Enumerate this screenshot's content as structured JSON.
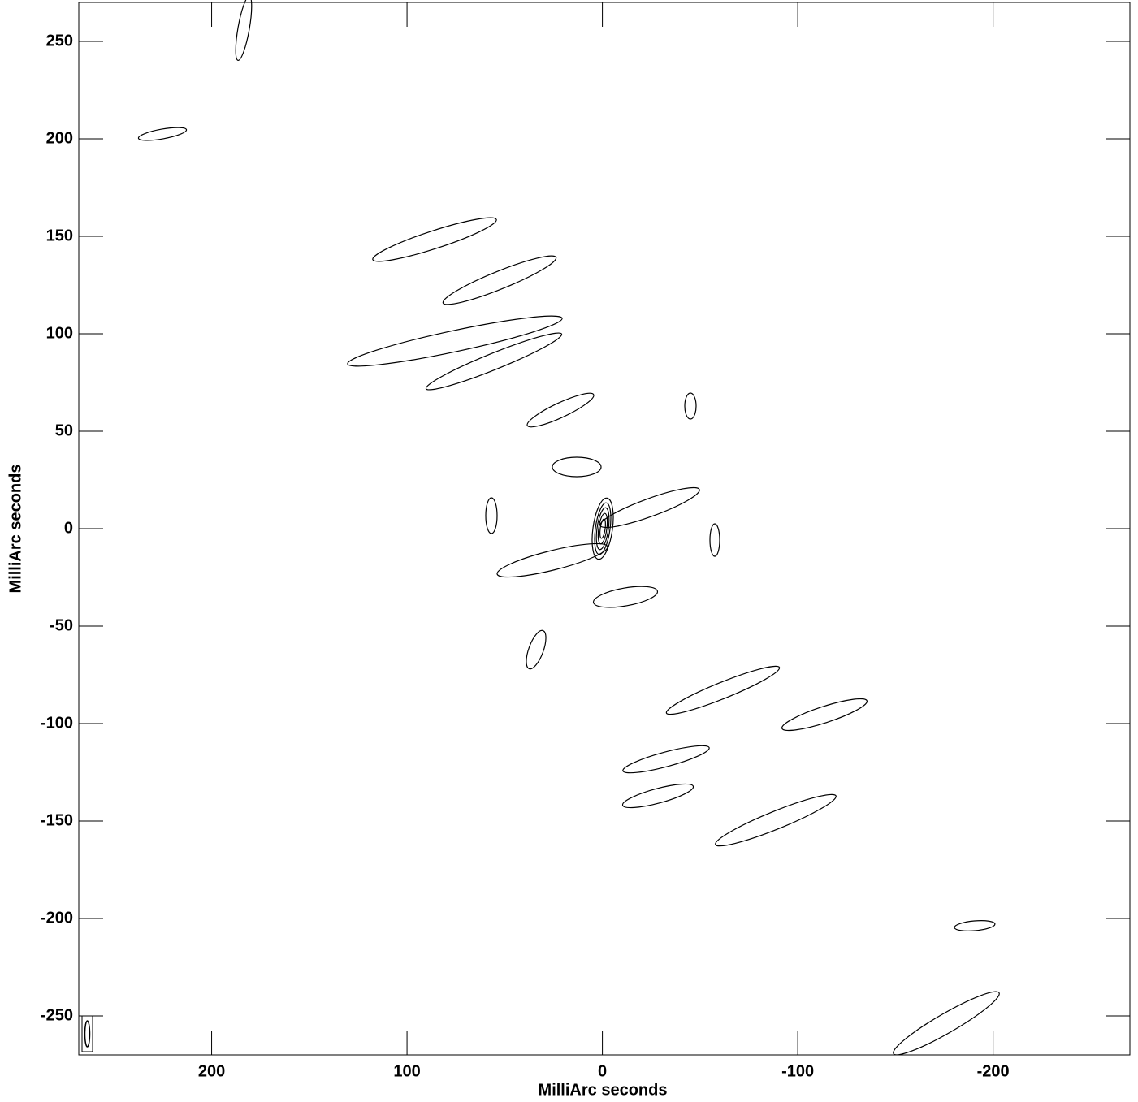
{
  "chart_data": {
    "type": "contour",
    "xlabel": "MilliArc seconds",
    "ylabel": "MilliArc seconds",
    "xlim": [
      268,
      -270
    ],
    "ylim": [
      -270,
      270
    ],
    "xticks": [
      200,
      100,
      0,
      -100,
      -200
    ],
    "yticks": [
      250,
      200,
      150,
      100,
      50,
      0,
      -50,
      -100,
      -150,
      -200,
      -250
    ]
  }
}
